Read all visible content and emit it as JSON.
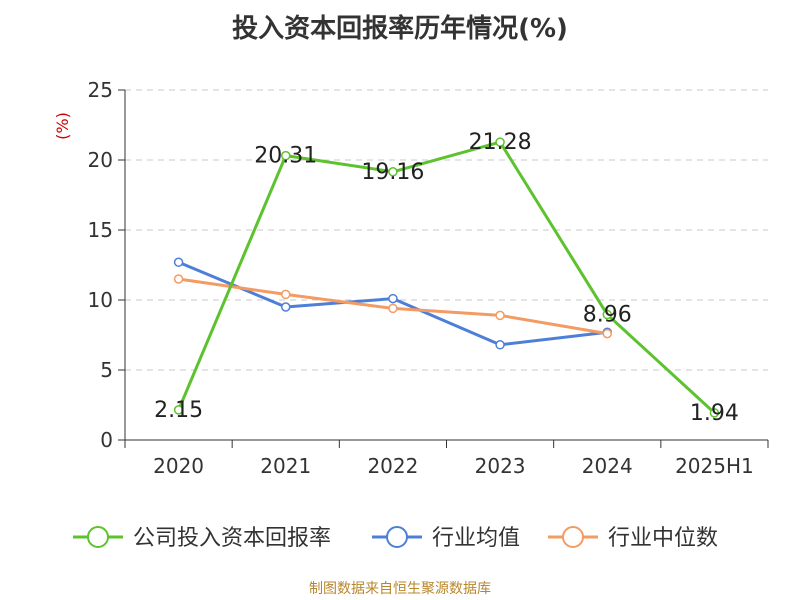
{
  "chart_data": {
    "type": "line",
    "title": "投入资本回报率历年情况(%)",
    "ylabel": "(%)",
    "xlabel": "",
    "categories": [
      "2020",
      "2021",
      "2022",
      "2023",
      "2024",
      "2025H1"
    ],
    "ylim": [
      0,
      25
    ],
    "yticks": [
      0,
      5,
      10,
      15,
      20,
      25
    ],
    "grid": "horizontal dashed",
    "legend_position": "bottom",
    "series": [
      {
        "name": "公司投入资本回报率",
        "color": "#5cc22d",
        "values": [
          2.15,
          20.31,
          19.16,
          21.28,
          8.96,
          1.94
        ],
        "show_labels": true
      },
      {
        "name": "行业均值",
        "color": "#4d7fd9",
        "values": [
          12.7,
          9.5,
          10.1,
          6.8,
          7.7,
          null
        ],
        "show_labels": false
      },
      {
        "name": "行业中位数",
        "color": "#f39b63",
        "values": [
          11.5,
          10.4,
          9.4,
          8.9,
          7.6,
          null
        ],
        "show_labels": false
      }
    ]
  },
  "footer": {
    "source": "制图数据来自恒生聚源数据库"
  }
}
